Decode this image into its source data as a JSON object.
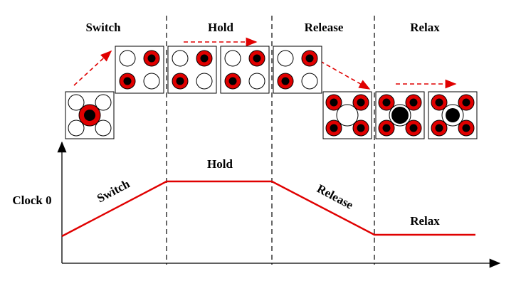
{
  "phases": [
    "Switch",
    "Hold",
    "Release",
    "Relax"
  ],
  "curve_labels": [
    "Switch",
    "Hold",
    "Release",
    "Relax"
  ],
  "y_axis_label": "Clock 0"
}
